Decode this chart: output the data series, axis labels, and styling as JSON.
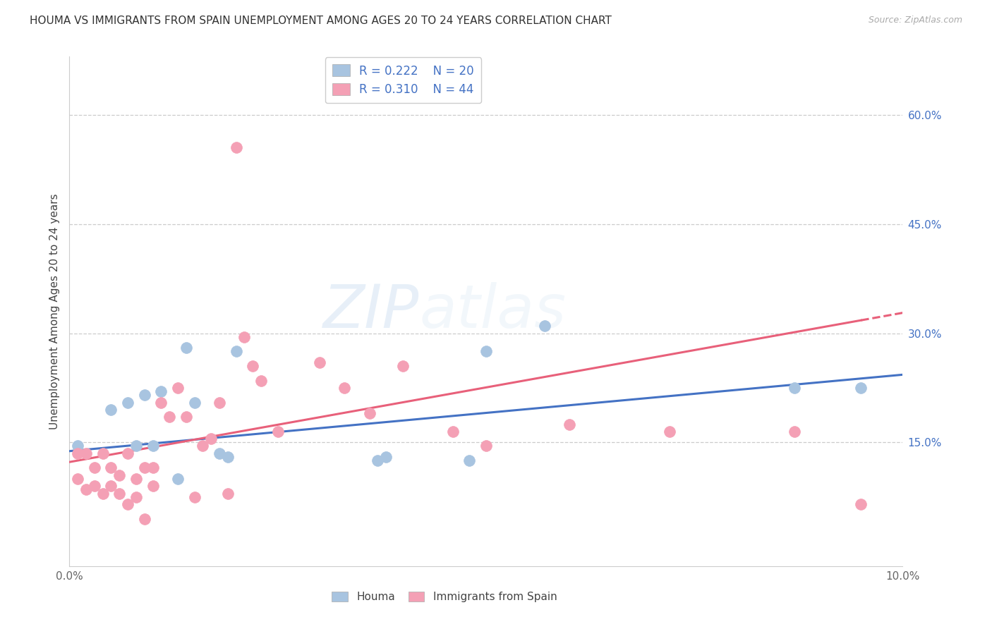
{
  "title": "HOUMA VS IMMIGRANTS FROM SPAIN UNEMPLOYMENT AMONG AGES 20 TO 24 YEARS CORRELATION CHART",
  "source": "Source: ZipAtlas.com",
  "ylabel": "Unemployment Among Ages 20 to 24 years",
  "xlabel_houma": "Houma",
  "xlabel_spain": "Immigrants from Spain",
  "xlim": [
    0.0,
    0.1
  ],
  "ylim": [
    -0.02,
    0.68
  ],
  "houma_R": "0.222",
  "houma_N": "20",
  "spain_R": "0.310",
  "spain_N": "44",
  "houma_color": "#a8c4e0",
  "spain_color": "#f4a0b5",
  "trendline_houma_color": "#4472c4",
  "trendline_spain_color": "#e8607a",
  "yticks_right": [
    0.15,
    0.3,
    0.45,
    0.6
  ],
  "ytick_labels_right": [
    "15.0%",
    "30.0%",
    "45.0%",
    "60.0%"
  ],
  "xtick_positions": [
    0.0,
    0.02,
    0.04,
    0.06,
    0.08,
    0.1
  ],
  "xtick_labels": [
    "0.0%",
    "",
    "",
    "",
    "",
    "10.0%"
  ],
  "houma_x": [
    0.001,
    0.005,
    0.007,
    0.008,
    0.009,
    0.01,
    0.011,
    0.013,
    0.014,
    0.015,
    0.018,
    0.019,
    0.02,
    0.037,
    0.038,
    0.048,
    0.05,
    0.057,
    0.087,
    0.095
  ],
  "houma_y": [
    0.145,
    0.195,
    0.205,
    0.145,
    0.215,
    0.145,
    0.22,
    0.1,
    0.28,
    0.205,
    0.135,
    0.13,
    0.275,
    0.125,
    0.13,
    0.125,
    0.275,
    0.31,
    0.225,
    0.225
  ],
  "spain_x": [
    0.001,
    0.001,
    0.002,
    0.002,
    0.003,
    0.003,
    0.004,
    0.004,
    0.005,
    0.005,
    0.006,
    0.006,
    0.007,
    0.007,
    0.008,
    0.008,
    0.009,
    0.009,
    0.01,
    0.01,
    0.011,
    0.012,
    0.013,
    0.014,
    0.015,
    0.016,
    0.017,
    0.018,
    0.019,
    0.02,
    0.021,
    0.022,
    0.023,
    0.025,
    0.03,
    0.033,
    0.036,
    0.04,
    0.046,
    0.05,
    0.06,
    0.072,
    0.087,
    0.095
  ],
  "spain_y": [
    0.135,
    0.1,
    0.135,
    0.085,
    0.115,
    0.09,
    0.135,
    0.08,
    0.115,
    0.09,
    0.105,
    0.08,
    0.135,
    0.065,
    0.1,
    0.075,
    0.115,
    0.045,
    0.115,
    0.09,
    0.205,
    0.185,
    0.225,
    0.185,
    0.075,
    0.145,
    0.155,
    0.205,
    0.08,
    0.555,
    0.295,
    0.255,
    0.235,
    0.165,
    0.26,
    0.225,
    0.19,
    0.255,
    0.165,
    0.145,
    0.175,
    0.165,
    0.165,
    0.065
  ],
  "trendline_houma_slope": 1.05,
  "trendline_houma_intercept": 0.138,
  "trendline_spain_slope": 2.05,
  "trendline_spain_intercept": 0.123
}
